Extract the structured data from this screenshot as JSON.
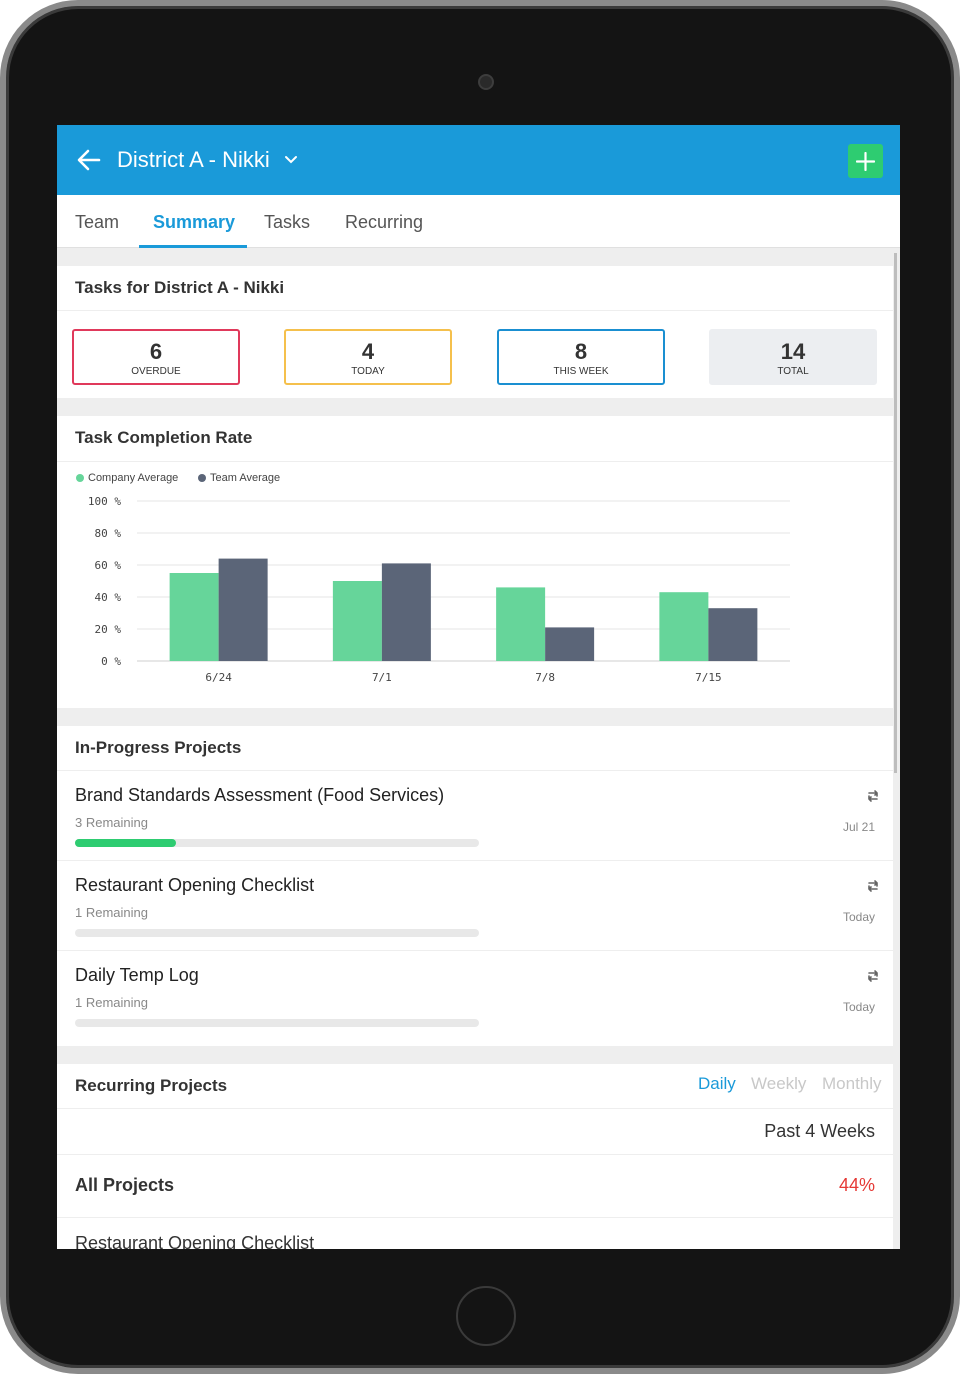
{
  "header": {
    "title": "District A - Nikki",
    "add_label": "+"
  },
  "tabs": [
    {
      "label": "Team",
      "active": false
    },
    {
      "label": "Summary",
      "active": true
    },
    {
      "label": "Tasks",
      "active": false
    },
    {
      "label": "Recurring",
      "active": false
    }
  ],
  "tasks_card": {
    "title": "Tasks for District A - Nikki",
    "stats": [
      {
        "value": "6",
        "label": "OVERDUE",
        "color": "#e0395b"
      },
      {
        "value": "4",
        "label": "TODAY",
        "color": "#f5c04c"
      },
      {
        "value": "8",
        "label": "THIS WEEK",
        "color": "#1a8fd1"
      },
      {
        "value": "14",
        "label": "TOTAL",
        "color": "#eceef1"
      }
    ]
  },
  "completion_card": {
    "title": "Task Completion Rate"
  },
  "chart_data": {
    "type": "bar",
    "categories": [
      "6/24",
      "7/1",
      "7/8",
      "7/15"
    ],
    "series": [
      {
        "name": "Company Average",
        "color": "#66d59a",
        "values": [
          55,
          50,
          46,
          43
        ]
      },
      {
        "name": "Team Average",
        "color": "#5b6578",
        "values": [
          64,
          61,
          21,
          33
        ]
      }
    ],
    "y_ticks": [
      "100 %",
      "80 %",
      "60 %",
      "40 %",
      "20 %",
      "0 %"
    ],
    "ylim": [
      0,
      100
    ],
    "grid": true,
    "legend_position": "top-left"
  },
  "projects_card": {
    "title": "In-Progress Projects",
    "items": [
      {
        "name": "Brand Standards Assessment (Food Services)",
        "remaining": "3 Remaining",
        "date": "Jul 21",
        "progress": 0.25
      },
      {
        "name": "Restaurant Opening Checklist",
        "remaining": "1 Remaining",
        "date": "Today",
        "progress": 0
      },
      {
        "name": "Daily Temp Log",
        "remaining": "1 Remaining",
        "date": "Today",
        "progress": 0
      }
    ]
  },
  "recurring_card": {
    "title": "Recurring Projects",
    "periods": [
      {
        "label": "Daily",
        "active": true
      },
      {
        "label": "Weekly",
        "active": false
      },
      {
        "label": "Monthly",
        "active": false
      }
    ],
    "range_label": "Past 4 Weeks",
    "all_projects_label": "All Projects",
    "all_projects_value": "44%",
    "next_item": "Restaurant Opening Checklist"
  },
  "colors": {
    "brand": "#1a9ad9",
    "add_button": "#2ecc71",
    "negative": "#e53935"
  }
}
